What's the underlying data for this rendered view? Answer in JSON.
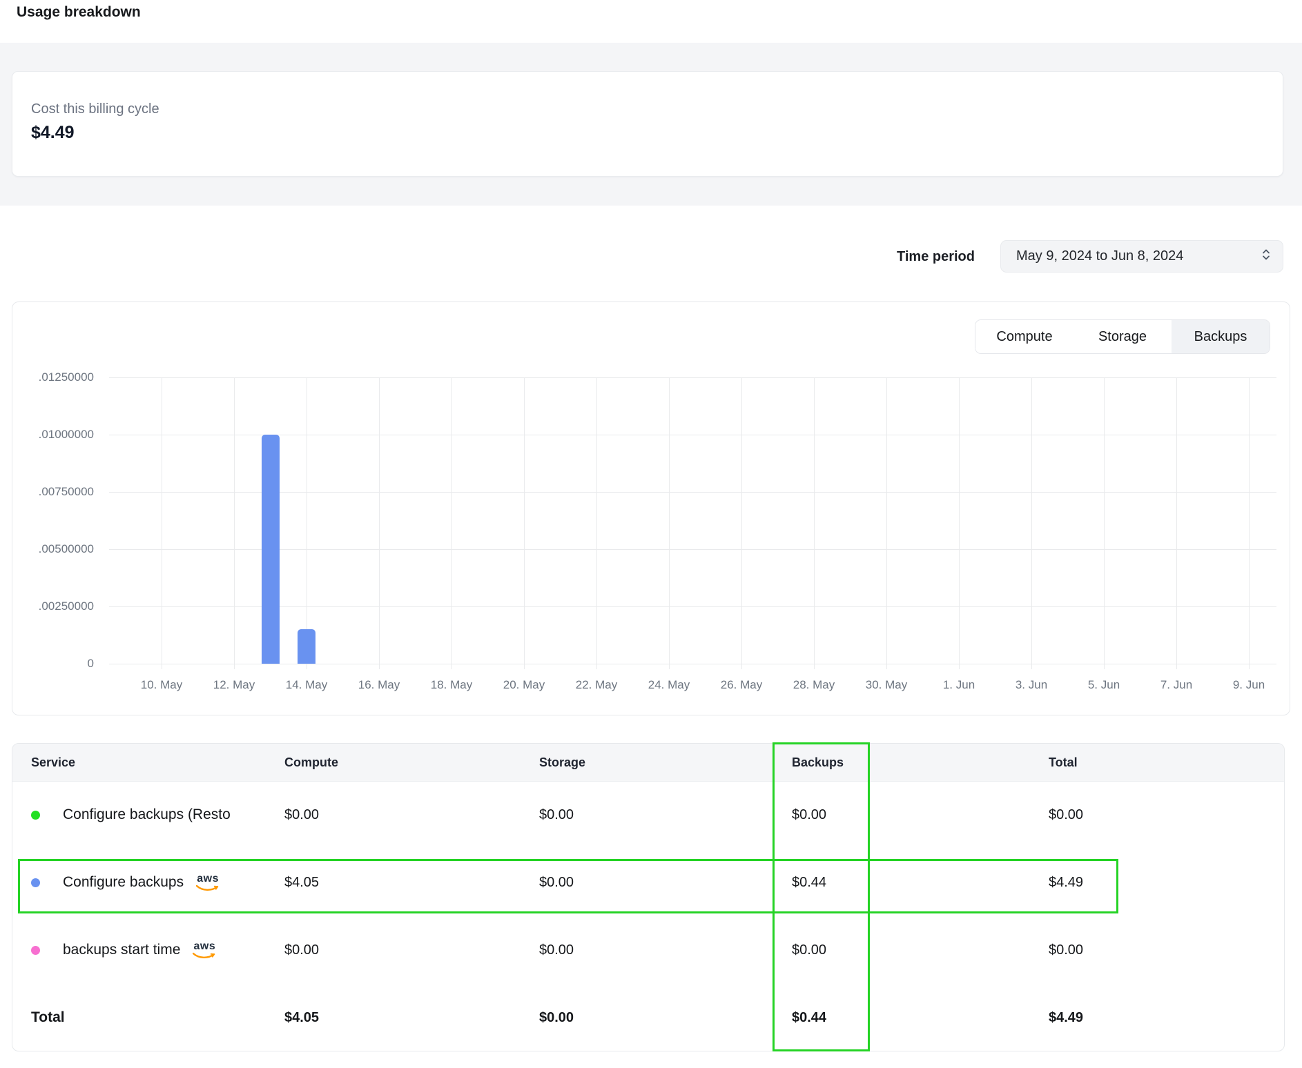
{
  "page_title": "Usage breakdown",
  "summary_card": {
    "label": "Cost this billing cycle",
    "value": "$4.49"
  },
  "time_period": {
    "label": "Time period",
    "value": "May 9, 2024 to Jun 8, 2024"
  },
  "chart_tabs": [
    {
      "label": "Compute",
      "selected": false
    },
    {
      "label": "Storage",
      "selected": false
    },
    {
      "label": "Backups",
      "selected": true
    }
  ],
  "chart_data": {
    "type": "bar",
    "title": "",
    "xlabel": "",
    "ylabel": "",
    "series_name": "Backups",
    "ylim": [
      0,
      0.0125
    ],
    "grid": true,
    "bar_color": "#6992f0",
    "y_ticks": [
      {
        "label": ".01250000",
        "value": 0.0125
      },
      {
        "label": ".01000000",
        "value": 0.01
      },
      {
        "label": ".00750000",
        "value": 0.0075
      },
      {
        "label": ".00500000",
        "value": 0.005
      },
      {
        "label": ".00250000",
        "value": 0.0025
      },
      {
        "label": "0",
        "value": 0
      }
    ],
    "x_ticks": [
      "10. May",
      "12. May",
      "14. May",
      "16. May",
      "18. May",
      "20. May",
      "22. May",
      "24. May",
      "26. May",
      "28. May",
      "30. May",
      "1. Jun",
      "3. Jun",
      "5. Jun",
      "7. Jun",
      "9. Jun"
    ],
    "bars": [
      {
        "date_label": "13. May",
        "day_index": 3,
        "value": 0.01
      },
      {
        "date_label": "14. May",
        "day_index": 4,
        "value": 0.0015
      }
    ]
  },
  "table": {
    "columns": [
      "Service",
      "Compute",
      "Storage",
      "Backups",
      "Total"
    ],
    "rows": [
      {
        "service": "Configure backups (Resto",
        "dot_color": "#22e022",
        "aws": false,
        "compute": "$0.00",
        "storage": "$0.00",
        "backups": "$0.00",
        "total": "$0.00"
      },
      {
        "service": "Configure backups",
        "dot_color": "#6992f0",
        "aws": true,
        "highlighted": true,
        "compute": "$4.05",
        "storage": "$0.00",
        "backups": "$0.44",
        "total": "$4.49"
      },
      {
        "service": "backups start time",
        "dot_color": "#f76fd0",
        "aws": true,
        "compute": "$0.00",
        "storage": "$0.00",
        "backups": "$0.00",
        "total": "$0.00"
      }
    ],
    "total_row": {
      "label": "Total",
      "compute": "$4.05",
      "storage": "$0.00",
      "backups": "$0.44",
      "total": "$4.49"
    }
  },
  "aws_logo": {
    "text": "aws",
    "smile_color": "#ff9900"
  },
  "annotations": {
    "color": "#25d325",
    "boxes": [
      "backups-column",
      "configure-backups-row"
    ]
  }
}
